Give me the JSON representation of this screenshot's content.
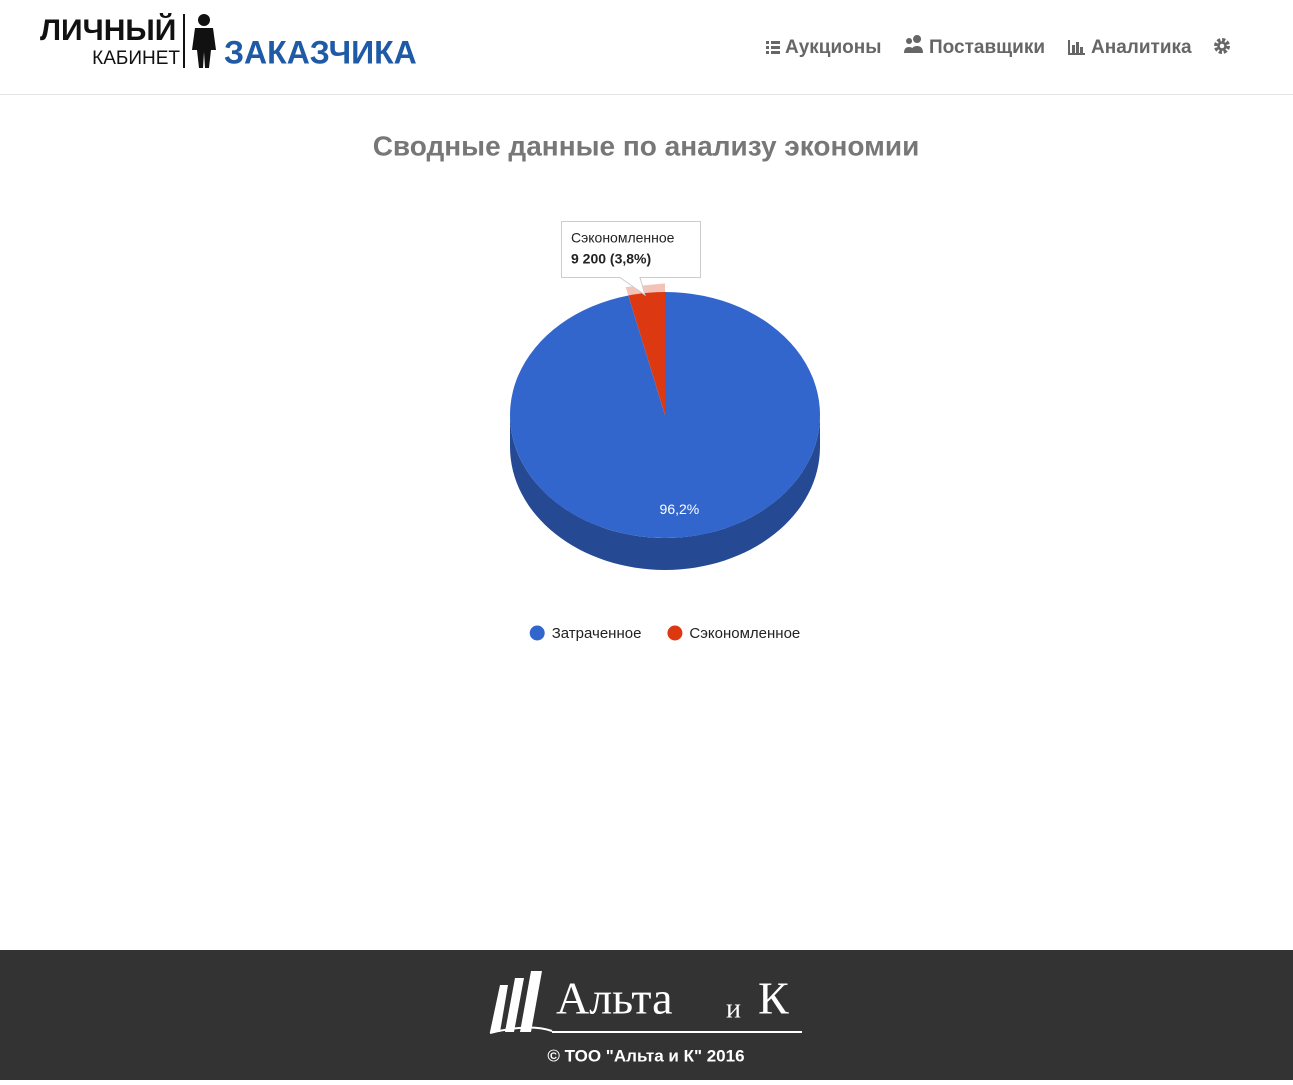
{
  "header": {
    "logo": {
      "line1": "ЛИЧНЫЙ",
      "line2": "КАБИНЕТ",
      "line3": "ЗАКАЗЧИКА"
    },
    "nav": [
      "Аукционы",
      "Поставщики",
      "Аналитика"
    ]
  },
  "chart_data": {
    "type": "pie",
    "title": "Сводные данные по анализу экономии",
    "is3d": true,
    "categories": [
      "Затраченное",
      "Сэкономленное"
    ],
    "values": [
      96.2,
      3.8
    ],
    "value_labels": [
      "96,2%",
      null
    ],
    "colors": [
      "#3366cc",
      "#dc3912"
    ],
    "tooltip": {
      "category": "Сэкономленное",
      "text": "9 200 (3,8%)"
    },
    "legend": "bottom"
  },
  "footer": {
    "brand": "Альта",
    "conj": "и",
    "brand_end": "К",
    "copyright": "© ТОО \"Альта и К\" 2016"
  }
}
